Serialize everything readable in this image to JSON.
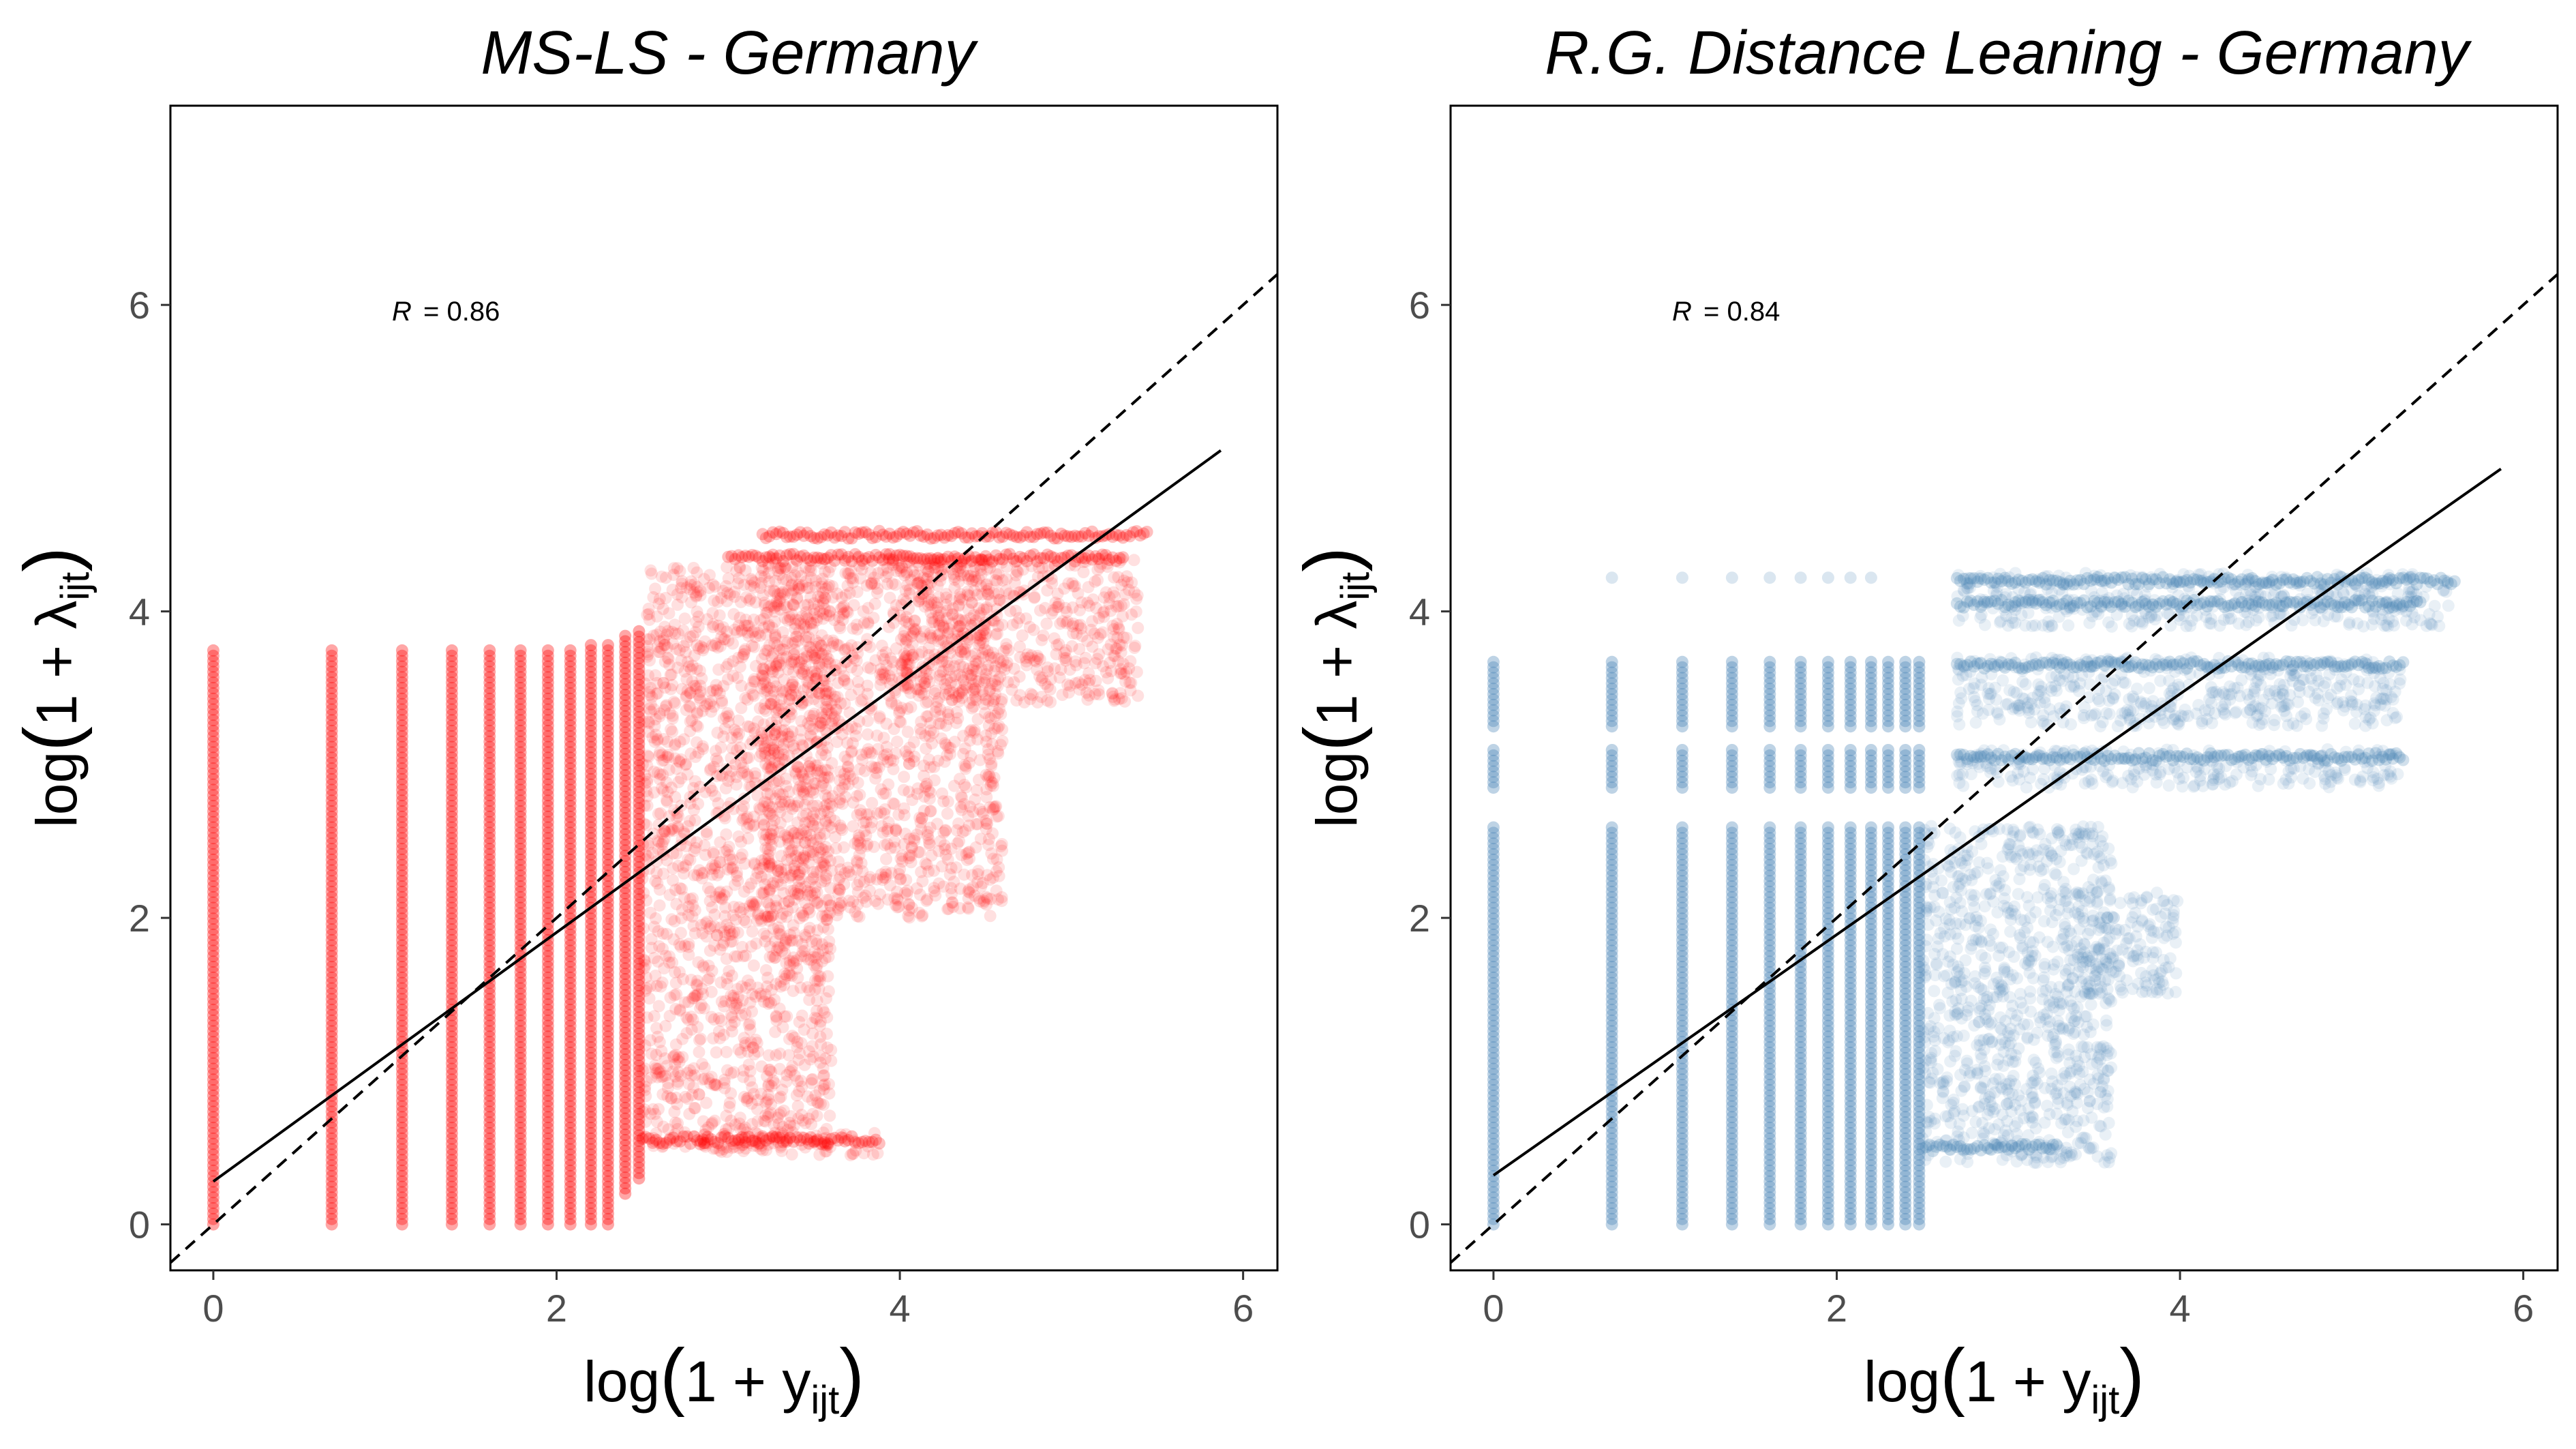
{
  "chart_data": [
    {
      "type": "scatter",
      "title": "MS-LS - Germany",
      "xlabel": {
        "prefix": "log",
        "open": "(",
        "body": "1 + y",
        "sub": "ijt",
        "close": ")"
      },
      "ylabel": {
        "prefix": "log",
        "open": "(",
        "body": "1 + λ",
        "sub": "ijt",
        "close": ")"
      },
      "xlim": [
        -0.25,
        6.2
      ],
      "ylim": [
        -0.3,
        7.3
      ],
      "xticks": [
        0,
        2,
        4,
        6
      ],
      "yticks": [
        0,
        2,
        4,
        6
      ],
      "point_color": "#ff0000",
      "annotation": {
        "label": "R",
        "value": "= 0.86",
        "x": 1.35,
        "y": 5.97
      },
      "fit_line": {
        "x": [
          0,
          5.87
        ],
        "y": [
          0.28,
          5.05
        ]
      },
      "reference_line": {
        "slope": 1,
        "intercept": 0
      },
      "columns_x": [
        0,
        0.69,
        1.1,
        1.39,
        1.61,
        1.79,
        1.95,
        2.08,
        2.2,
        2.3,
        2.4,
        2.48
      ],
      "columns_y_range": [
        [
          0,
          3.78
        ],
        [
          0,
          3.78
        ],
        [
          0,
          3.78
        ],
        [
          0,
          3.78
        ],
        [
          0,
          3.78
        ],
        [
          0,
          3.78
        ],
        [
          0,
          3.78
        ],
        [
          0,
          3.78
        ],
        [
          0,
          3.8
        ],
        [
          0,
          3.8
        ],
        [
          0.2,
          3.85
        ],
        [
          0.3,
          3.9
        ]
      ],
      "clouds": [
        {
          "x": [
            2.5,
            3.6
          ],
          "y": [
            0.5,
            4.3
          ]
        },
        {
          "x": [
            3.2,
            4.6
          ],
          "y": [
            2.0,
            4.35
          ]
        },
        {
          "x": [
            4.0,
            5.4
          ],
          "y": [
            3.4,
            4.35
          ]
        },
        {
          "x": [
            2.8,
            3.9
          ],
          "y": [
            0.45,
            0.6
          ]
        }
      ],
      "stripes": [
        {
          "y": 4.5,
          "x": [
            3.2,
            5.45
          ]
        },
        {
          "y": 4.35,
          "x": [
            3.0,
            5.3
          ]
        },
        {
          "y": 0.55,
          "x": [
            2.5,
            3.9
          ]
        }
      ]
    },
    {
      "type": "scatter",
      "title": "R.G. Distance Leaning - Germany",
      "xlabel": {
        "prefix": "log",
        "open": "(",
        "body": "1 + y",
        "sub": "ijt",
        "close": ")"
      },
      "ylabel": {
        "prefix": "log",
        "open": "(",
        "body": "1 + λ",
        "sub": "ijt",
        "close": ")"
      },
      "xlim": [
        -0.25,
        6.2
      ],
      "ylim": [
        -0.3,
        7.3
      ],
      "xticks": [
        0,
        2,
        4,
        6
      ],
      "yticks": [
        0,
        2,
        4,
        6
      ],
      "point_color": "#4682b4",
      "annotation": {
        "label": "R",
        "value": "= 0.84",
        "x": 1.35,
        "y": 5.97
      },
      "fit_line": {
        "x": [
          0,
          5.87
        ],
        "y": [
          0.32,
          4.93
        ]
      },
      "reference_line": {
        "slope": 1,
        "intercept": 0
      },
      "columns_x": [
        0,
        0.69,
        1.1,
        1.39,
        1.61,
        1.79,
        1.95,
        2.08,
        2.2,
        2.3,
        2.4,
        2.48
      ],
      "columns_y_range": [
        [
          0,
          2.6
        ],
        [
          0,
          2.6
        ],
        [
          0,
          2.6
        ],
        [
          0,
          2.6
        ],
        [
          0,
          2.6
        ],
        [
          0,
          2.6
        ],
        [
          0,
          2.6
        ],
        [
          0,
          2.6
        ],
        [
          0,
          2.6
        ],
        [
          0,
          2.6
        ],
        [
          0,
          2.6
        ],
        [
          0,
          2.6
        ]
      ],
      "column_bands": [
        [
          2.85,
          3.1
        ],
        [
          3.25,
          3.7
        ]
      ],
      "clouds": [
        {
          "x": [
            2.5,
            3.6
          ],
          "y": [
            0.4,
            2.6
          ]
        },
        {
          "x": [
            2.7,
            5.6
          ],
          "y": [
            3.9,
            4.25
          ]
        },
        {
          "x": [
            2.7,
            5.3
          ],
          "y": [
            3.25,
            3.7
          ]
        },
        {
          "x": [
            2.7,
            5.3
          ],
          "y": [
            2.85,
            3.1
          ]
        },
        {
          "x": [
            3.4,
            4.0
          ],
          "y": [
            1.5,
            2.2
          ]
        }
      ],
      "stripes": [
        {
          "y": 4.2,
          "x": [
            2.7,
            5.6
          ]
        },
        {
          "y": 4.05,
          "x": [
            2.7,
            5.4
          ]
        },
        {
          "y": 3.65,
          "x": [
            2.7,
            5.3
          ]
        },
        {
          "y": 3.05,
          "x": [
            2.7,
            5.3
          ]
        },
        {
          "y": 0.5,
          "x": [
            2.5,
            3.3
          ]
        }
      ],
      "sparse_top_points": [
        0.69,
        1.1,
        1.39,
        1.61,
        1.79,
        1.95,
        2.08,
        2.2
      ]
    }
  ]
}
